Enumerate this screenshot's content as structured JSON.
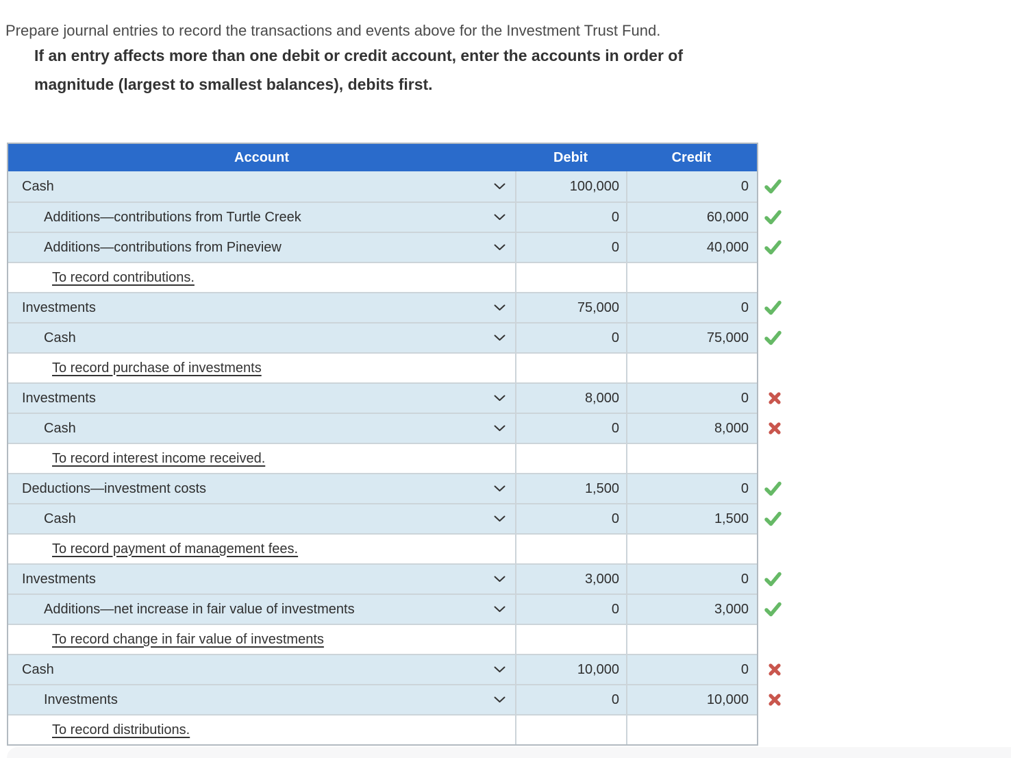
{
  "instructions": {
    "line1": "Prepare journal entries to record the transactions and events above for the Investment Trust Fund.",
    "line2": "If an entry affects more than one debit or credit account, enter the accounts in order of",
    "line3": "magnitude (largest to smallest balances), debits first."
  },
  "table": {
    "headers": {
      "account": "Account",
      "debit": "Debit",
      "credit": "Credit"
    },
    "rows": [
      {
        "type": "entry",
        "label": "Cash",
        "indent": 0,
        "debit": "100,000",
        "credit": "0",
        "status": "correct"
      },
      {
        "type": "entry",
        "label": "Additions—contributions from Turtle Creek",
        "indent": 1,
        "debit": "0",
        "credit": "60,000",
        "status": "correct"
      },
      {
        "type": "entry",
        "label": "Additions—contributions from Pineview",
        "indent": 1,
        "debit": "0",
        "credit": "40,000",
        "status": "correct"
      },
      {
        "type": "memo",
        "label": "To record contributions."
      },
      {
        "type": "entry",
        "label": "Investments",
        "indent": 0,
        "debit": "75,000",
        "credit": "0",
        "status": "correct"
      },
      {
        "type": "entry",
        "label": "Cash",
        "indent": 1,
        "debit": "0",
        "credit": "75,000",
        "status": "correct"
      },
      {
        "type": "memo",
        "label": "To record purchase of investments"
      },
      {
        "type": "entry",
        "label": "Investments",
        "indent": 0,
        "debit": "8,000",
        "credit": "0",
        "status": "incorrect"
      },
      {
        "type": "entry",
        "label": "Cash",
        "indent": 1,
        "debit": "0",
        "credit": "8,000",
        "status": "incorrect"
      },
      {
        "type": "memo",
        "label": "To record interest income received."
      },
      {
        "type": "entry",
        "label": "Deductions—investment costs",
        "indent": 0,
        "debit": "1,500",
        "credit": "0",
        "status": "correct"
      },
      {
        "type": "entry",
        "label": "Cash",
        "indent": 1,
        "debit": "0",
        "credit": "1,500",
        "status": "correct"
      },
      {
        "type": "memo",
        "label": "To record payment of management fees."
      },
      {
        "type": "entry",
        "label": "Investments",
        "indent": 0,
        "debit": "3,000",
        "credit": "0",
        "status": "correct"
      },
      {
        "type": "entry",
        "label": "Additions—net increase in fair value of investments",
        "indent": 1,
        "debit": "0",
        "credit": "3,000",
        "status": "correct"
      },
      {
        "type": "memo",
        "label": "To record change in fair value of investments"
      },
      {
        "type": "entry",
        "label": "Cash",
        "indent": 0,
        "debit": "10,000",
        "credit": "0",
        "status": "incorrect"
      },
      {
        "type": "entry",
        "label": "Investments",
        "indent": 1,
        "debit": "0",
        "credit": "10,000",
        "status": "incorrect"
      },
      {
        "type": "memo",
        "label": "To record distributions."
      }
    ]
  },
  "icons": {
    "dropdown": "chevron-down-icon",
    "correct": "check-icon",
    "incorrect": "cross-icon"
  },
  "colors": {
    "header_bg": "#2a6bcb",
    "row_bg": "#d9e9f2",
    "row_border": "#ccd4d9",
    "correct": "#66b966",
    "incorrect": "#c9564d"
  }
}
